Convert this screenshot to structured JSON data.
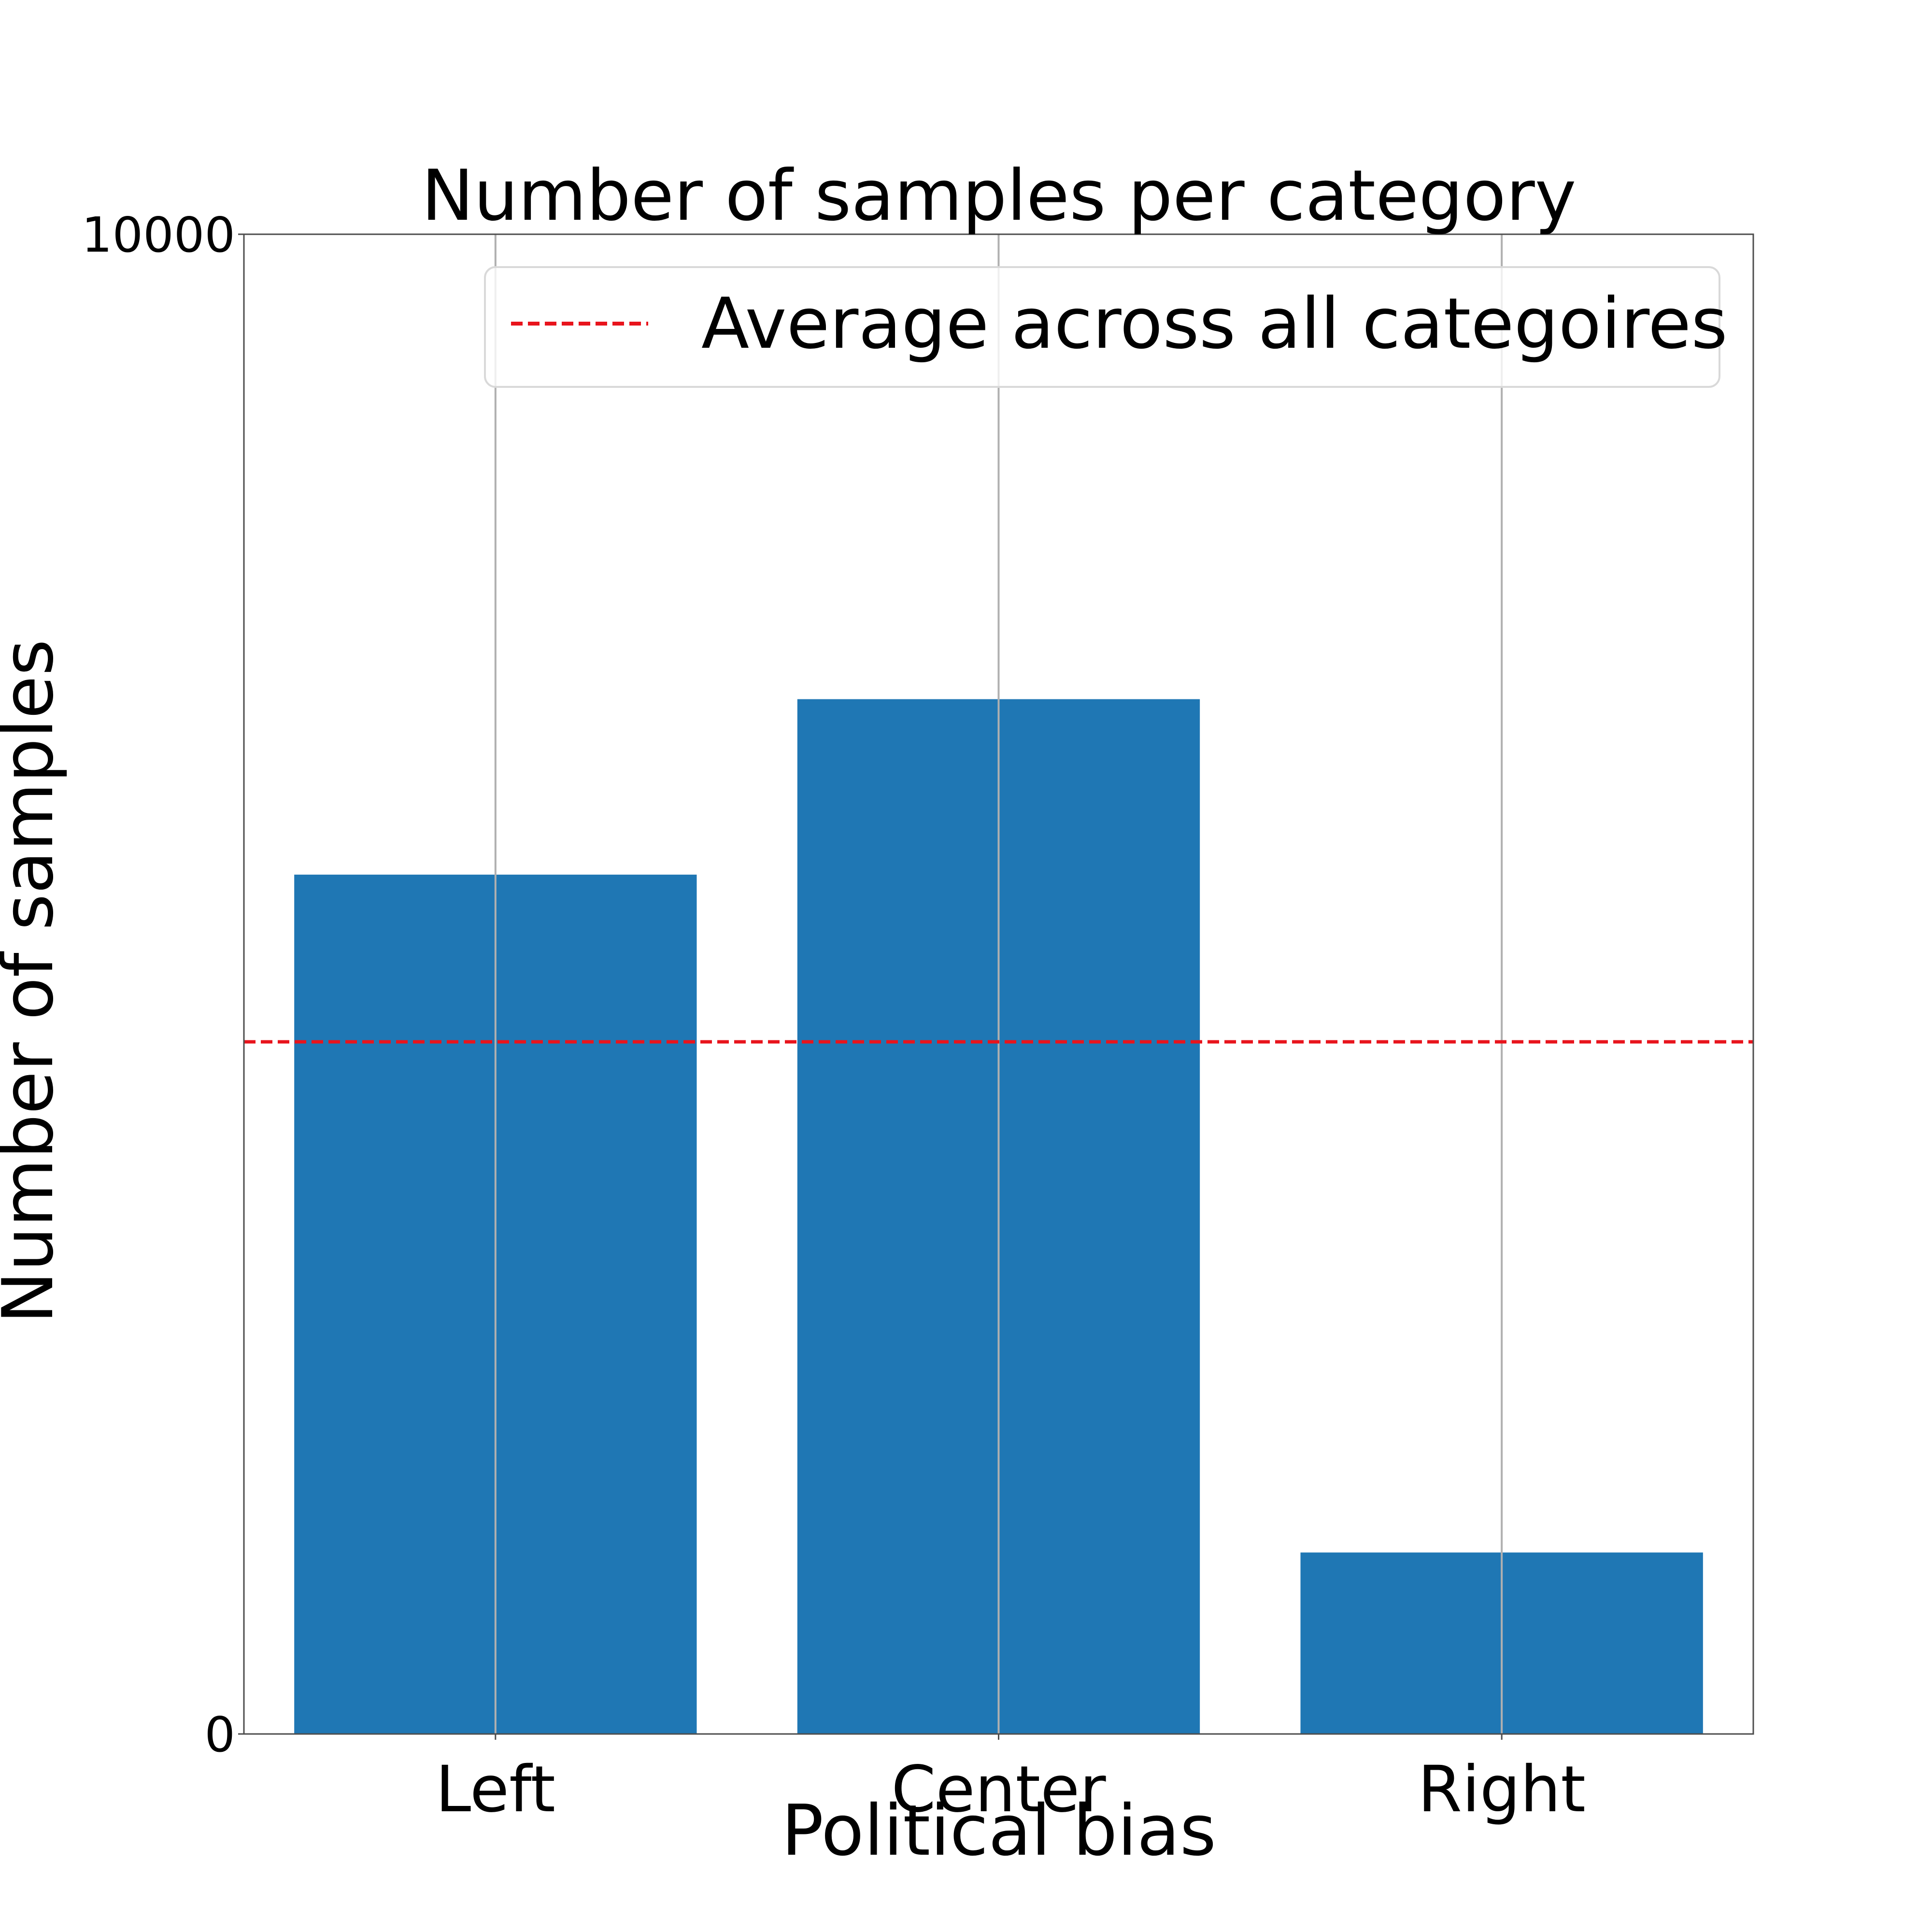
{
  "chart_data": {
    "type": "bar",
    "title": "Number of samples per category",
    "xlabel": "Political bias",
    "ylabel": "Number of samples",
    "categories": [
      "Left",
      "Center",
      "Right"
    ],
    "values": [
      5730,
      6900,
      1210
    ],
    "ylim": [
      0,
      10000
    ],
    "yticks": [
      "0",
      "10000"
    ],
    "average": 4615,
    "legend": {
      "label": "Average across all categoires",
      "placement": "top-right"
    },
    "grid": "x-only",
    "colors": {
      "bar": "#1f77b4",
      "average_line": "#e8141c",
      "grid": "#b0b0b0",
      "axes": "#4d4d4d"
    }
  }
}
